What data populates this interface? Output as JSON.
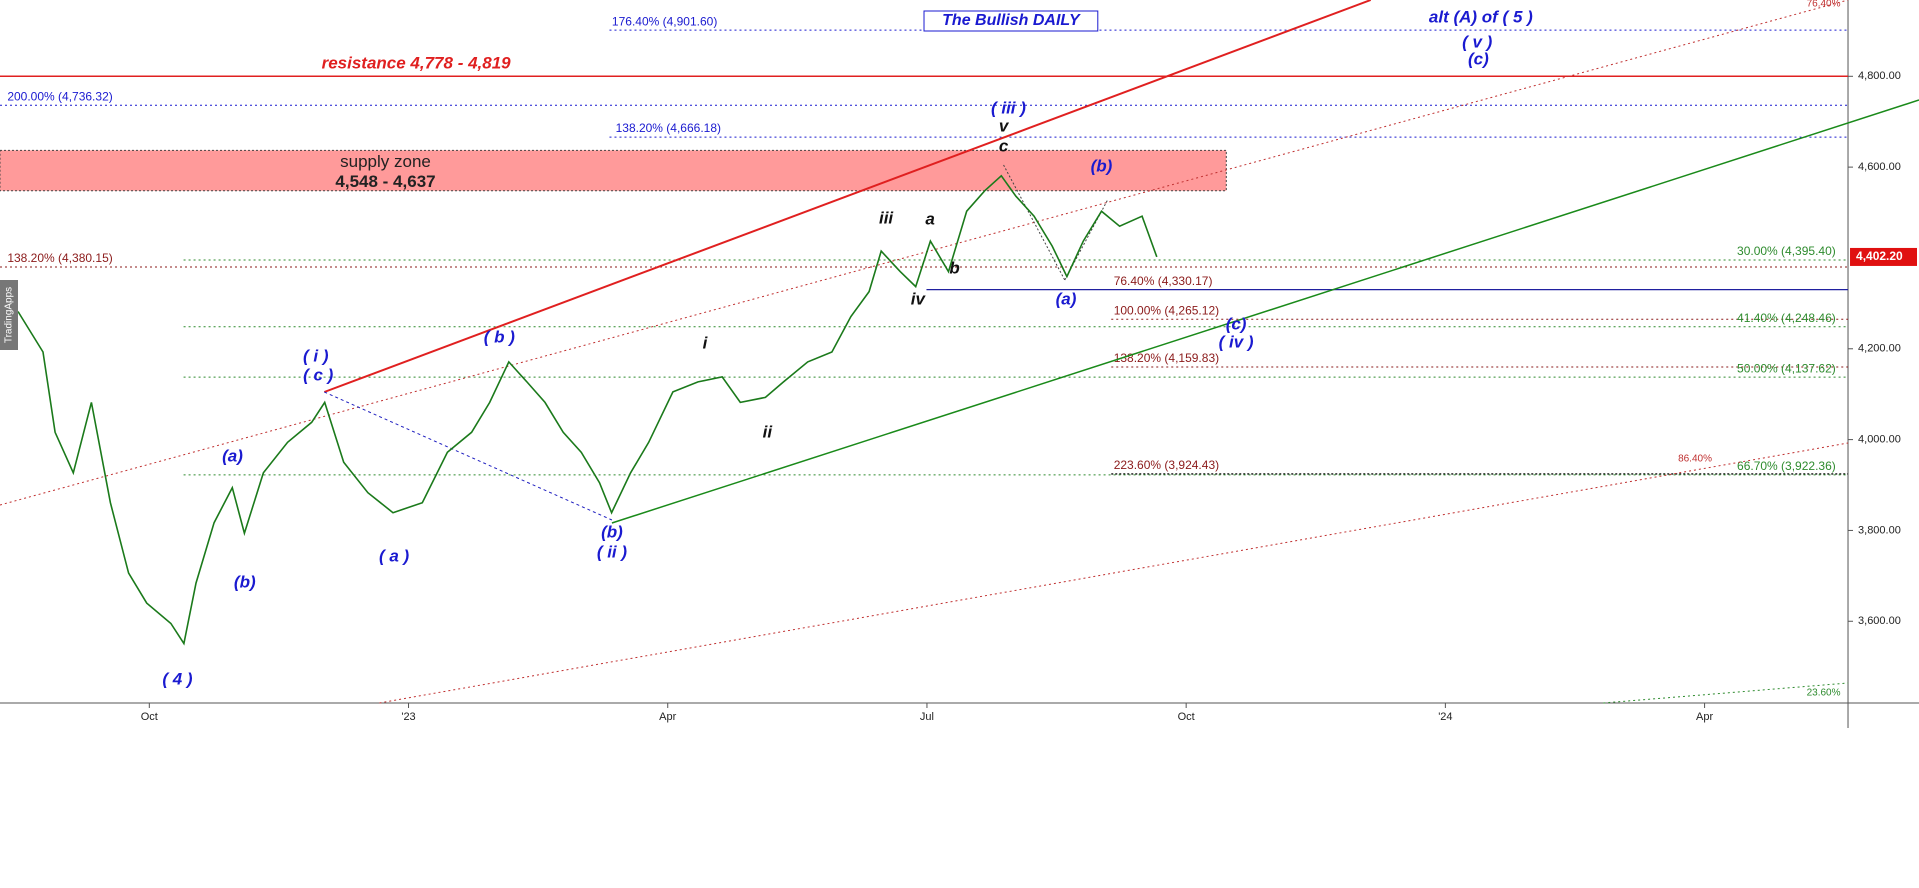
{
  "chart_data": {
    "type": "line",
    "title": "The Bullish DAILY",
    "watermark": "TradingApps",
    "x": [
      -1.52,
      -1.23,
      -1.09,
      -0.88,
      -0.67,
      -0.45,
      -0.24,
      -0.03,
      0.25,
      0.4,
      0.54,
      0.75,
      0.96,
      1.1,
      1.32,
      1.6,
      1.88,
      2.03,
      2.25,
      2.53,
      2.82,
      3.16,
      3.45,
      3.73,
      3.94,
      4.16,
      4.37,
      4.58,
      4.79,
      5.0,
      5.21,
      5.35,
      5.57,
      5.78,
      6.06,
      6.35,
      6.63,
      6.84,
      7.13,
      7.34,
      7.62,
      7.9,
      8.12,
      8.33,
      8.47,
      8.69,
      8.87,
      9.04,
      9.25,
      9.46,
      9.67,
      9.86,
      10.03,
      10.24,
      10.45,
      10.62,
      10.81,
      11.02,
      11.23,
      11.49,
      11.66
    ],
    "values": [
      4282,
      4193,
      4016,
      3927,
      4082,
      3861,
      3706,
      3640,
      3595,
      3551,
      3684,
      3817,
      3894,
      3794,
      3927,
      3994,
      4038,
      4082,
      3950,
      3883,
      3839,
      3861,
      3972,
      4016,
      4082,
      4171,
      4127,
      4082,
      4016,
      3972,
      3905,
      3839,
      3927,
      3994,
      4105,
      4127,
      4138,
      4082,
      4093,
      4127,
      4171,
      4193,
      4271,
      4326,
      4415,
      4370,
      4337,
      4437,
      4370,
      4503,
      4548,
      4581,
      4536,
      4492,
      4426,
      4359,
      4437,
      4503,
      4470,
      4492,
      4402.2
    ],
    "color": "#1b7a1b",
    "xlim": [
      -1.73,
      19.66
    ],
    "xticks": [
      {
        "value": 0,
        "label": "Oct"
      },
      {
        "value": 3,
        "label": "'23"
      },
      {
        "value": 6,
        "label": "Apr"
      },
      {
        "value": 9,
        "label": "Jul"
      },
      {
        "value": 12,
        "label": "Oct"
      },
      {
        "value": 15,
        "label": "'24"
      },
      {
        "value": 18,
        "label": "Apr"
      }
    ],
    "ylim": [
      3420,
      4968
    ],
    "yticks": [
      {
        "value": 3600,
        "label": "3,600.00"
      },
      {
        "value": 3800,
        "label": "3,800.00"
      },
      {
        "value": 4000,
        "label": "4,000.00"
      },
      {
        "value": 4200,
        "label": "4,200.00"
      },
      {
        "value": 4600,
        "label": "4,600.00"
      },
      {
        "value": 4800,
        "label": "4,800.00"
      }
    ],
    "last_price": {
      "value": 4402.2,
      "label": "4,402.20",
      "color": "#e01010"
    },
    "resistance": {
      "label": "resistance 4,778 - 4,819",
      "color": "#e02020"
    },
    "zones": [
      {
        "label": "supply zone",
        "range_label": "4,548 - 4,637",
        "low": 4548,
        "high": 4637,
        "color": "#ff9a9a"
      }
    ],
    "levels": [
      {
        "label": "176.40% (4,901.60)",
        "value": 4901.6,
        "color": "#1a1ad0"
      },
      {
        "label": "200.00% (4,736.32)",
        "value": 4736.32,
        "color": "#1a1ad0"
      },
      {
        "label": "138.20% (4,666.18)",
        "value": 4666.18,
        "color": "#1a1ad0"
      },
      {
        "label": "138.20% (4,380.15)",
        "value": 4380.15,
        "color": "#8b1a1a"
      },
      {
        "label": "30.00% (4,395.40)",
        "value": 4395.4,
        "color": "#2e8b2e"
      },
      {
        "label": "76.40% (4,330.17)",
        "value": 4330.17,
        "color": "#8b1a1a"
      },
      {
        "label": "100.00% (4,265.12)",
        "value": 4265.12,
        "color": "#8b1a1a"
      },
      {
        "label": "41.40% (4,248.46)",
        "value": 4248.46,
        "color": "#2e8b2e"
      },
      {
        "label": "138.20% (4,159.83)",
        "value": 4159.83,
        "color": "#8b1a1a"
      },
      {
        "label": "50.00% (4,137.62)",
        "value": 4137.62,
        "color": "#2e8b2e"
      },
      {
        "label": "223.60% (3,924.43)",
        "value": 3924.43,
        "color": "#8b1a1a"
      },
      {
        "label": "66.70% (3,922.36)",
        "value": 3922.36,
        "color": "#2e8b2e"
      }
    ],
    "annotations": [
      {
        "text": "( 4 )",
        "color": "#1a1ad0"
      },
      {
        "text": "(a)",
        "color": "#1a1ad0"
      },
      {
        "text": "(b)",
        "color": "#1a1ad0"
      },
      {
        "text": "( i )",
        "color": "#1a1ad0"
      },
      {
        "text": "( c )",
        "color": "#1a1ad0"
      },
      {
        "text": "( a )",
        "color": "#1a1ad0"
      },
      {
        "text": "( b )",
        "color": "#1a1ad0"
      },
      {
        "text": "(b)",
        "color": "#1a1ad0"
      },
      {
        "text": "( ii )",
        "color": "#1a1ad0"
      },
      {
        "text": "i",
        "color": "#111"
      },
      {
        "text": "ii",
        "color": "#111"
      },
      {
        "text": "iii",
        "color": "#111"
      },
      {
        "text": "iv",
        "color": "#111"
      },
      {
        "text": "a",
        "color": "#111"
      },
      {
        "text": "b",
        "color": "#111"
      },
      {
        "text": "( iii )",
        "color": "#1a1ad0"
      },
      {
        "text": "v",
        "color": "#111"
      },
      {
        "text": "c",
        "color": "#111"
      },
      {
        "text": "(b)",
        "color": "#1a1ad0"
      },
      {
        "text": "(a)",
        "color": "#1a1ad0"
      },
      {
        "text": "(c)",
        "color": "#1a1ad0"
      },
      {
        "text": "( iv )",
        "color": "#1a1ad0"
      },
      {
        "text": "alt (A) of ( 5 )",
        "color": "#1a1ad0"
      },
      {
        "text": "( v )",
        "color": "#1a1ad0"
      },
      {
        "text": "(c)",
        "color": "#1a1ad0"
      },
      {
        "text": "76.40%",
        "color": "#c03030"
      },
      {
        "text": "86.40%",
        "color": "#c03030"
      },
      {
        "text": "23.60%",
        "color": "#2e8b2e"
      }
    ]
  }
}
